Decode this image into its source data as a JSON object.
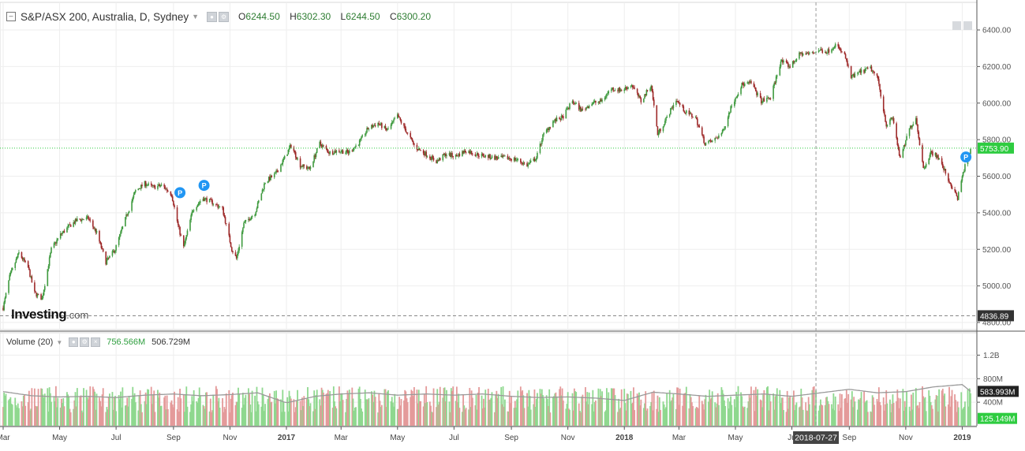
{
  "header": {
    "title": "S&P/ASX 200, Australia, D, Sydney",
    "open_label": "O",
    "open": "6244.50",
    "high_label": "H",
    "high": "6302.30",
    "low_label": "L",
    "low": "6244.50",
    "close_label": "C",
    "close": "6300.20"
  },
  "volume_header": {
    "title": "Volume (20)",
    "value1": "756.566M",
    "value2": "506.729M"
  },
  "logo": {
    "brand": "Investing",
    "suffix": ".com"
  },
  "colors": {
    "up": "#3f9a3f",
    "down": "#9e2a2a",
    "vol_up": "#8fd88f",
    "vol_down": "#e49a9a",
    "ma": "#9a9a9a",
    "last_price": "#2ecc40",
    "axis_text": "#555555",
    "grid": "#eeeeee"
  },
  "chart_data": [
    {
      "type": "candlestick",
      "title": "S&P/ASX 200, Australia, D, Sydney",
      "x_range": [
        "2016-03-01",
        "2019-01-10"
      ],
      "ylim": [
        4800,
        6470
      ],
      "y_ticks": [
        "6400.00",
        "6200.00",
        "6000.00",
        "5800.00",
        "5600.00",
        "5400.00",
        "5200.00",
        "5000.00",
        "4800.00"
      ],
      "x_ticks": [
        {
          "date": "2016-03-01",
          "label": "Mar"
        },
        {
          "date": "2016-05-01",
          "label": "May"
        },
        {
          "date": "2016-07-01",
          "label": "Jul"
        },
        {
          "date": "2016-09-01",
          "label": "Sep"
        },
        {
          "date": "2016-11-01",
          "label": "Nov"
        },
        {
          "date": "2017-01-01",
          "label": "2017"
        },
        {
          "date": "2017-03-01",
          "label": "Mar"
        },
        {
          "date": "2017-05-01",
          "label": "May"
        },
        {
          "date": "2017-07-01",
          "label": "Jul"
        },
        {
          "date": "2017-09-01",
          "label": "Sep"
        },
        {
          "date": "2017-11-01",
          "label": "Nov"
        },
        {
          "date": "2018-01-01",
          "label": "2018"
        },
        {
          "date": "2018-03-01",
          "label": "Mar"
        },
        {
          "date": "2018-05-01",
          "label": "May"
        },
        {
          "date": "2018-07-01",
          "label": "Ju"
        },
        {
          "date": "2018-09-01",
          "label": "Sep"
        },
        {
          "date": "2018-11-01",
          "label": "Nov"
        },
        {
          "date": "2019-01-01",
          "label": "2019"
        }
      ],
      "close_path": [
        [
          "2016-03-01",
          4880
        ],
        [
          "2016-03-08",
          5050
        ],
        [
          "2016-03-18",
          5180
        ],
        [
          "2016-03-28",
          5100
        ],
        [
          "2016-04-04",
          4960
        ],
        [
          "2016-04-12",
          4930
        ],
        [
          "2016-04-22",
          5200
        ],
        [
          "2016-05-02",
          5280
        ],
        [
          "2016-05-12",
          5330
        ],
        [
          "2016-05-20",
          5360
        ],
        [
          "2016-06-01",
          5370
        ],
        [
          "2016-06-10",
          5290
        ],
        [
          "2016-06-20",
          5130
        ],
        [
          "2016-06-30",
          5200
        ],
        [
          "2016-07-12",
          5380
        ],
        [
          "2016-07-22",
          5520
        ],
        [
          "2016-08-01",
          5560
        ],
        [
          "2016-08-10",
          5540
        ],
        [
          "2016-08-20",
          5550
        ],
        [
          "2016-08-30",
          5500
        ],
        [
          "2016-09-06",
          5330
        ],
        [
          "2016-09-12",
          5210
        ],
        [
          "2016-09-22",
          5420
        ],
        [
          "2016-10-03",
          5480
        ],
        [
          "2016-10-12",
          5460
        ],
        [
          "2016-10-24",
          5420
        ],
        [
          "2016-11-03",
          5200
        ],
        [
          "2016-11-08",
          5150
        ],
        [
          "2016-11-16",
          5340
        ],
        [
          "2016-11-28",
          5400
        ],
        [
          "2016-12-09",
          5570
        ],
        [
          "2016-12-20",
          5610
        ],
        [
          "2016-12-30",
          5700
        ],
        [
          "2017-01-06",
          5770
        ],
        [
          "2017-01-16",
          5660
        ],
        [
          "2017-01-26",
          5640
        ],
        [
          "2017-02-06",
          5780
        ],
        [
          "2017-02-16",
          5730
        ],
        [
          "2017-02-27",
          5740
        ],
        [
          "2017-03-09",
          5730
        ],
        [
          "2017-03-20",
          5780
        ],
        [
          "2017-03-30",
          5860
        ],
        [
          "2017-04-10",
          5890
        ],
        [
          "2017-04-20",
          5850
        ],
        [
          "2017-05-01",
          5930
        ],
        [
          "2017-05-10",
          5850
        ],
        [
          "2017-05-20",
          5760
        ],
        [
          "2017-06-01",
          5720
        ],
        [
          "2017-06-12",
          5680
        ],
        [
          "2017-06-22",
          5720
        ],
        [
          "2017-07-03",
          5710
        ],
        [
          "2017-07-14",
          5740
        ],
        [
          "2017-07-25",
          5720
        ],
        [
          "2017-08-04",
          5710
        ],
        [
          "2017-08-16",
          5700
        ],
        [
          "2017-08-28",
          5700
        ],
        [
          "2017-09-07",
          5690
        ],
        [
          "2017-09-18",
          5660
        ],
        [
          "2017-09-28",
          5700
        ],
        [
          "2017-10-05",
          5820
        ],
        [
          "2017-10-16",
          5900
        ],
        [
          "2017-10-26",
          5920
        ],
        [
          "2017-11-06",
          6010
        ],
        [
          "2017-11-16",
          5960
        ],
        [
          "2017-11-27",
          6000
        ],
        [
          "2017-12-07",
          6010
        ],
        [
          "2017-12-18",
          6080
        ],
        [
          "2017-12-29",
          6070
        ],
        [
          "2018-01-09",
          6100
        ],
        [
          "2018-01-19",
          6010
        ],
        [
          "2018-01-30",
          6100
        ],
        [
          "2018-02-06",
          5830
        ],
        [
          "2018-02-16",
          5920
        ],
        [
          "2018-02-26",
          6020
        ],
        [
          "2018-03-08",
          5950
        ],
        [
          "2018-03-19",
          5920
        ],
        [
          "2018-03-29",
          5780
        ],
        [
          "2018-04-06",
          5790
        ],
        [
          "2018-04-17",
          5840
        ],
        [
          "2018-04-27",
          5990
        ],
        [
          "2018-05-08",
          6100
        ],
        [
          "2018-05-18",
          6110
        ],
        [
          "2018-05-29",
          6010
        ],
        [
          "2018-06-08",
          6030
        ],
        [
          "2018-06-19",
          6230
        ],
        [
          "2018-06-29",
          6200
        ],
        [
          "2018-07-10",
          6270
        ],
        [
          "2018-07-20",
          6270
        ],
        [
          "2018-07-31",
          6290
        ],
        [
          "2018-08-08",
          6280
        ],
        [
          "2018-08-17",
          6320
        ],
        [
          "2018-08-27",
          6260
        ],
        [
          "2018-09-03",
          6140
        ],
        [
          "2018-09-13",
          6170
        ],
        [
          "2018-09-24",
          6190
        ],
        [
          "2018-10-02",
          6130
        ],
        [
          "2018-10-11",
          5880
        ],
        [
          "2018-10-18",
          5920
        ],
        [
          "2018-10-26",
          5690
        ],
        [
          "2018-11-05",
          5860
        ],
        [
          "2018-11-12",
          5920
        ],
        [
          "2018-11-20",
          5640
        ],
        [
          "2018-11-28",
          5730
        ],
        [
          "2018-12-05",
          5710
        ],
        [
          "2018-12-12",
          5640
        ],
        [
          "2018-12-19",
          5560
        ],
        [
          "2018-12-27",
          5480
        ],
        [
          "2019-01-03",
          5640
        ],
        [
          "2019-01-10",
          5740
        ]
      ],
      "markers": [
        {
          "date": "2016-09-08",
          "price": 5510,
          "label": "P"
        },
        {
          "date": "2016-10-04",
          "price": 5550,
          "label": "P"
        },
        {
          "date": "2019-01-05",
          "price": 5705,
          "label": "P"
        }
      ],
      "last_price": {
        "value": 5753.9,
        "label": "5753.90"
      },
      "low_line": {
        "value": 4836.89,
        "label": "4836.89"
      },
      "crosshair": {
        "date": "2018-07-27",
        "label": "2018-07-27"
      },
      "grid": true
    },
    {
      "type": "bar",
      "title": "Volume (20)",
      "ylim": [
        0,
        1500000000
      ],
      "y_ticks": [
        "1.2B",
        "800M",
        "400M"
      ],
      "current_label": "125.149M",
      "ma_label": "583.993M",
      "volume_level": 500000000,
      "ma_path": [
        [
          "2016-03-01",
          580
        ],
        [
          "2016-04-01",
          510
        ],
        [
          "2016-05-01",
          490
        ],
        [
          "2016-06-01",
          500
        ],
        [
          "2016-07-01",
          480
        ],
        [
          "2016-08-01",
          520
        ],
        [
          "2016-09-01",
          540
        ],
        [
          "2016-10-01",
          510
        ],
        [
          "2016-11-01",
          530
        ],
        [
          "2016-12-01",
          560
        ],
        [
          "2017-01-01",
          390
        ],
        [
          "2017-02-01",
          500
        ],
        [
          "2017-03-01",
          540
        ],
        [
          "2017-04-01",
          560
        ],
        [
          "2017-05-01",
          520
        ],
        [
          "2017-06-01",
          540
        ],
        [
          "2017-07-01",
          520
        ],
        [
          "2017-08-01",
          540
        ],
        [
          "2017-09-01",
          500
        ],
        [
          "2017-10-01",
          480
        ],
        [
          "2017-11-01",
          490
        ],
        [
          "2017-12-01",
          470
        ],
        [
          "2018-01-01",
          430
        ],
        [
          "2018-02-01",
          570
        ],
        [
          "2018-03-01",
          540
        ],
        [
          "2018-04-01",
          500
        ],
        [
          "2018-05-01",
          520
        ],
        [
          "2018-06-01",
          540
        ],
        [
          "2018-07-01",
          500
        ],
        [
          "2018-08-01",
          560
        ],
        [
          "2018-09-01",
          620
        ],
        [
          "2018-10-01",
          560
        ],
        [
          "2018-11-01",
          580
        ],
        [
          "2018-12-01",
          660
        ],
        [
          "2019-01-01",
          700
        ],
        [
          "2019-01-10",
          584
        ]
      ]
    }
  ]
}
